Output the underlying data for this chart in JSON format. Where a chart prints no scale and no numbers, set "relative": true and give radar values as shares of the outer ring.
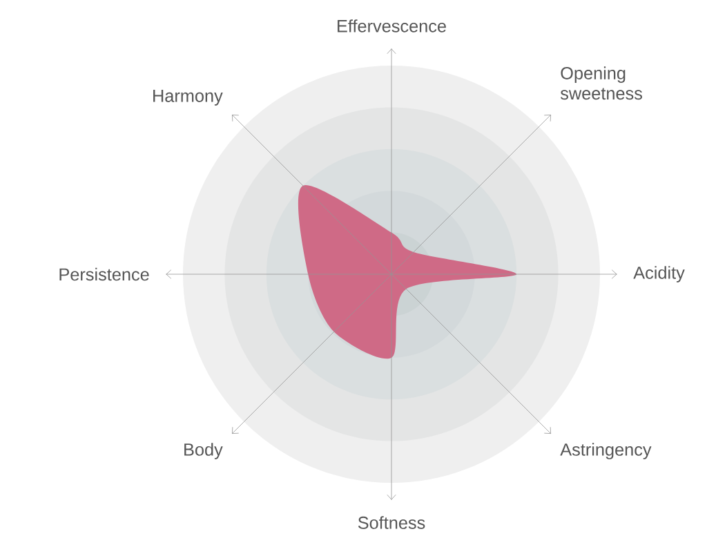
{
  "chart_data": {
    "type": "radar",
    "relative": true,
    "grid": true,
    "categories": [
      "Effervescence",
      "Opening sweetness",
      "Acidity",
      "Astringency",
      "Softness",
      "Body",
      "Persistence",
      "Harmony"
    ],
    "series": [
      {
        "color": "#cf6a86",
        "values": [
          0.2,
          0.15,
          0.6,
          0.1,
          0.4,
          0.39,
          0.4,
          0.6
        ]
      }
    ]
  }
}
